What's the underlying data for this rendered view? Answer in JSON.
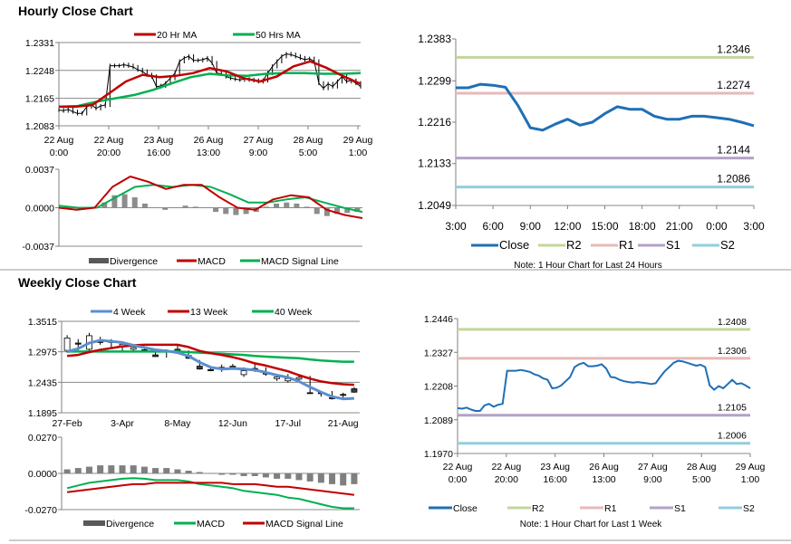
{
  "sections": {
    "hourly_title": "Hourly Close Chart",
    "weekly_title": "Weekly Close Chart"
  },
  "colors": {
    "red": "#c00000",
    "green": "#00b050",
    "blue_ma": "#5b8fd0",
    "close_blue": "#1f6fb5",
    "r2": "#c3d69b",
    "r1": "#e6b9b8",
    "s1": "#b3a2c7",
    "s2": "#93cddd",
    "divergence": "#595959",
    "grid": "#888888"
  },
  "chart_data": [
    {
      "type": "candlestick-line",
      "legend": [
        "20 Hr MA",
        "50 Hrs MA"
      ],
      "ylim": [
        1.2083,
        1.2331
      ],
      "yticks": [
        "1.2331",
        "1.2248",
        "1.2165",
        "1.2083"
      ],
      "xticks": [
        [
          "22 Aug",
          "0:00"
        ],
        [
          "22 Aug",
          "20:00"
        ],
        [
          "23 Aug",
          "16:00"
        ],
        [
          "26 Aug",
          "13:00"
        ],
        [
          "27 Aug",
          "9:00"
        ],
        [
          "28 Aug",
          "5:00"
        ],
        [
          "29 Aug",
          "1:00"
        ]
      ],
      "close": [
        1.213,
        1.2128,
        1.2132,
        1.2125,
        1.212,
        1.212,
        1.214,
        1.2145,
        1.2135,
        1.2142,
        1.2145,
        1.2262,
        1.2262,
        1.2262,
        1.2265,
        1.2262,
        1.2258,
        1.225,
        1.2245,
        1.2235,
        1.223,
        1.22,
        1.2202,
        1.221,
        1.2225,
        1.224,
        1.2275,
        1.2285,
        1.229,
        1.2278,
        1.2278,
        1.228,
        1.2285,
        1.227,
        1.224,
        1.2238,
        1.223,
        1.2225,
        1.2222,
        1.222,
        1.2222,
        1.222,
        1.2218,
        1.2215,
        1.2218,
        1.224,
        1.226,
        1.2275,
        1.229,
        1.2297,
        1.2295,
        1.229,
        1.2285,
        1.228,
        1.2283,
        1.2275,
        1.221,
        1.2195,
        1.2208,
        1.22,
        1.2215,
        1.223,
        1.2215,
        1.2218,
        1.221,
        1.22
      ],
      "series": [
        {
          "name": "20 Hr MA",
          "values": [
            1.214,
            1.214,
            1.2145,
            1.218,
            1.2215,
            1.2235,
            1.2228,
            1.2232,
            1.224,
            1.2255,
            1.2245,
            1.2225,
            1.2215,
            1.223,
            1.226,
            1.2275,
            1.2255,
            1.223,
            1.2208
          ]
        },
        {
          "name": "50 Hrs MA",
          "values": [
            1.214,
            1.2142,
            1.2155,
            1.2165,
            1.2175,
            1.219,
            1.221,
            1.2228,
            1.2238,
            1.2233,
            1.2232,
            1.2238,
            1.224,
            1.224,
            1.2238,
            1.2238,
            1.224
          ]
        }
      ]
    },
    {
      "type": "bar-line",
      "legend": [
        "Divergence",
        "MACD",
        "MACD Signal Line"
      ],
      "ylim": [
        -0.0037,
        0.0037
      ],
      "yticks": [
        "0.0037",
        "0.0000",
        "-0.0037"
      ],
      "divergence": [
        0,
        0,
        0,
        0.0001,
        0.0005,
        0.0012,
        0.0013,
        0.001,
        0.0004,
        0,
        -0.0002,
        0,
        0.0002,
        0.0001,
        0,
        -0.0004,
        -0.0006,
        -0.0007,
        -0.0006,
        -0.0004,
        0.0001,
        0.0004,
        0.0005,
        0.0004,
        0.0001,
        -0.0006,
        -0.0008,
        -0.0006,
        -0.0005,
        -0.0004
      ],
      "series": [
        {
          "name": "MACD",
          "values": [
            0.0,
            -0.0002,
            0.0,
            0.002,
            0.003,
            0.0025,
            0.0018,
            0.0022,
            0.0022,
            0.001,
            0.0,
            -0.0002,
            0.0008,
            0.0012,
            0.001,
            -0.0002,
            -0.0007,
            -0.001
          ]
        },
        {
          "name": "MACD Signal Line",
          "values": [
            0.0002,
            0.0,
            0.0,
            0.001,
            0.002,
            0.0022,
            0.002,
            0.0022,
            0.002,
            0.0013,
            0.0005,
            0.0005,
            0.0008,
            0.001,
            0.0005,
            0.0,
            -0.0004
          ]
        }
      ]
    },
    {
      "type": "candlestick",
      "legend": [
        "4 Week",
        "13 Week",
        "40 Week"
      ],
      "ylim": [
        1.1895,
        1.3515
      ],
      "yticks": [
        "1.3515",
        "1.2975",
        "1.2435",
        "1.1895"
      ],
      "xticks": [
        "27-Feb",
        "3-Apr",
        "8-May",
        "12-Jun",
        "17-Jul",
        "21-Aug"
      ],
      "ohlc": [
        [
          1.3,
          1.327,
          1.296,
          1.322
        ],
        [
          1.313,
          1.32,
          1.3,
          1.311
        ],
        [
          1.302,
          1.331,
          1.299,
          1.326
        ],
        [
          1.316,
          1.324,
          1.31,
          1.314
        ],
        [
          1.317,
          1.32,
          1.302,
          1.314
        ],
        [
          1.308,
          1.312,
          1.298,
          1.311
        ],
        [
          1.302,
          1.31,
          1.296,
          1.305
        ],
        [
          1.301,
          1.303,
          1.298,
          1.3
        ],
        [
          1.292,
          1.3,
          1.29,
          1.289
        ],
        [
          1.3,
          1.302,
          1.287,
          1.299
        ],
        [
          1.302,
          1.31,
          1.295,
          1.299
        ],
        [
          1.291,
          1.3,
          1.285,
          1.286
        ],
        [
          1.272,
          1.283,
          1.266,
          1.267
        ],
        [
          1.266,
          1.268,
          1.263,
          1.264
        ],
        [
          1.27,
          1.275,
          1.262,
          1.269
        ],
        [
          1.272,
          1.276,
          1.267,
          1.268
        ],
        [
          1.257,
          1.27,
          1.253,
          1.264
        ],
        [
          1.268,
          1.277,
          1.262,
          1.267
        ],
        [
          1.26,
          1.27,
          1.255,
          1.258
        ],
        [
          1.25,
          1.256,
          1.246,
          1.253
        ],
        [
          1.246,
          1.258,
          1.243,
          1.25
        ],
        [
          1.249,
          1.256,
          1.245,
          1.252
        ],
        [
          1.225,
          1.255,
          1.225,
          1.224
        ],
        [
          1.225,
          1.228,
          1.218,
          1.224
        ],
        [
          1.216,
          1.228,
          1.213,
          1.215
        ],
        [
          1.222,
          1.225,
          1.216,
          1.221
        ],
        [
          1.232,
          1.235,
          1.225,
          1.226
        ]
      ],
      "series": [
        {
          "name": "4 Week",
          "values": [
            1.298,
            1.303,
            1.313,
            1.318,
            1.316,
            1.314,
            1.309,
            1.305,
            1.301,
            1.299,
            1.296,
            1.29,
            1.279,
            1.27,
            1.267,
            1.268,
            1.267,
            1.265,
            1.261,
            1.256,
            1.252,
            1.245,
            1.235,
            1.226,
            1.218,
            1.214,
            1.215
          ]
        },
        {
          "name": "13 Week",
          "values": [
            1.29,
            1.292,
            1.297,
            1.301,
            1.304,
            1.307,
            1.309,
            1.31,
            1.31,
            1.31,
            1.31,
            1.306,
            1.299,
            1.295,
            1.292,
            1.288,
            1.283,
            1.277,
            1.273,
            1.268,
            1.263,
            1.256,
            1.25,
            1.245,
            1.242,
            1.24,
            1.239
          ]
        },
        {
          "name": "40 Week",
          "values": [
            1.298,
            1.298,
            1.298,
            1.298,
            1.298,
            1.298,
            1.298,
            1.298,
            1.298,
            1.298,
            1.298,
            1.297,
            1.296,
            1.295,
            1.294,
            1.293,
            1.292,
            1.29,
            1.289,
            1.288,
            1.287,
            1.286,
            1.284,
            1.282,
            1.281,
            1.28,
            1.28
          ]
        }
      ]
    },
    {
      "type": "bar-line",
      "legend": [
        "Divergence",
        "MACD",
        "MACD Signal Line"
      ],
      "ylim": [
        -0.027,
        0.027
      ],
      "yticks": [
        "0.0270",
        "0.0000",
        "-0.0270"
      ],
      "divergence": [
        0.003,
        0.004,
        0.005,
        0.006,
        0.006,
        0.006,
        0.006,
        0.005,
        0.004,
        0.004,
        0.003,
        0.002,
        0.001,
        0,
        -0.001,
        -0.001,
        -0.002,
        -0.002,
        -0.003,
        -0.004,
        -0.004,
        -0.005,
        -0.006,
        -0.007,
        -0.008,
        -0.009,
        -0.008
      ],
      "series": [
        {
          "name": "MACD",
          "values": [
            -0.011,
            -0.009,
            -0.007,
            -0.006,
            -0.005,
            -0.004,
            -0.0035,
            -0.004,
            -0.005,
            -0.005,
            -0.005,
            -0.006,
            -0.008,
            -0.009,
            -0.01,
            -0.011,
            -0.013,
            -0.014,
            -0.015,
            -0.016,
            -0.018,
            -0.019,
            -0.021,
            -0.023,
            -0.025,
            -0.026,
            -0.026
          ]
        },
        {
          "name": "MACD Signal Line",
          "values": [
            -0.014,
            -0.013,
            -0.012,
            -0.011,
            -0.01,
            -0.009,
            -0.008,
            -0.008,
            -0.007,
            -0.007,
            -0.007,
            -0.007,
            -0.007,
            -0.007,
            -0.007,
            -0.008,
            -0.008,
            -0.008,
            -0.009,
            -0.01,
            -0.01,
            -0.011,
            -0.012,
            -0.013,
            -0.014,
            -0.015,
            -0.016
          ]
        }
      ]
    },
    {
      "type": "line",
      "legend": [
        "Close",
        "R2",
        "R1",
        "S1",
        "S2"
      ],
      "note": "Note: 1 Hour Chart for Last 24 Hours",
      "ylim": [
        1.2049,
        1.2383
      ],
      "yticks": [
        "1.2383",
        "1.2299",
        "1.2216",
        "1.2133",
        "1.2049"
      ],
      "xticks": [
        "3:00",
        "6:00",
        "9:00",
        "12:00",
        "15:00",
        "18:00",
        "21:00",
        "0:00",
        "3:00"
      ],
      "close": [
        1.2285,
        1.2285,
        1.2292,
        1.229,
        1.2286,
        1.225,
        1.2205,
        1.22,
        1.2212,
        1.2222,
        1.221,
        1.2216,
        1.2233,
        1.2247,
        1.2242,
        1.2242,
        1.2228,
        1.2222,
        1.2222,
        1.2228,
        1.2228,
        1.2225,
        1.2222,
        1.2216,
        1.2209
      ],
      "levels": [
        {
          "name": "R2",
          "value": 1.2346,
          "label": "1.2346"
        },
        {
          "name": "R1",
          "value": 1.2274,
          "label": "1.2274"
        },
        {
          "name": "S1",
          "value": 1.2144,
          "label": "1.2144"
        },
        {
          "name": "S2",
          "value": 1.2086,
          "label": "1.2086"
        }
      ]
    },
    {
      "type": "line",
      "legend": [
        "Close",
        "R2",
        "R1",
        "S1",
        "S2"
      ],
      "note": "Note: 1 Hour Chart for Last 1 Week",
      "ylim": [
        1.197,
        1.2446
      ],
      "yticks": [
        "1.2446",
        "1.2327",
        "1.2208",
        "1.2089",
        "1.1970"
      ],
      "xticks": [
        [
          "22 Aug",
          "0:00"
        ],
        [
          "22 Aug",
          "20:00"
        ],
        [
          "23 Aug",
          "16:00"
        ],
        [
          "26 Aug",
          "13:00"
        ],
        [
          "27 Aug",
          "9:00"
        ],
        [
          "28 Aug",
          "5:00"
        ],
        [
          "29 Aug",
          "1:00"
        ]
      ],
      "close": [
        1.213,
        1.2128,
        1.2132,
        1.2125,
        1.212,
        1.212,
        1.214,
        1.2145,
        1.2135,
        1.2142,
        1.2145,
        1.2262,
        1.2262,
        1.2262,
        1.2265,
        1.2262,
        1.2258,
        1.225,
        1.2245,
        1.2235,
        1.223,
        1.22,
        1.2202,
        1.221,
        1.2225,
        1.224,
        1.2275,
        1.2285,
        1.229,
        1.2278,
        1.2278,
        1.228,
        1.2285,
        1.227,
        1.224,
        1.2238,
        1.223,
        1.2225,
        1.2222,
        1.222,
        1.2222,
        1.222,
        1.2218,
        1.2215,
        1.2218,
        1.224,
        1.226,
        1.2275,
        1.229,
        1.2297,
        1.2295,
        1.229,
        1.2285,
        1.228,
        1.2283,
        1.2275,
        1.221,
        1.2195,
        1.2208,
        1.22,
        1.2215,
        1.223,
        1.2215,
        1.2218,
        1.221,
        1.22
      ],
      "levels": [
        {
          "name": "R2",
          "value": 1.2408,
          "label": "1.2408"
        },
        {
          "name": "R1",
          "value": 1.2306,
          "label": "1.2306"
        },
        {
          "name": "S1",
          "value": 1.2105,
          "label": "1.2105"
        },
        {
          "name": "S2",
          "value": 1.2006,
          "label": "1.2006"
        }
      ]
    }
  ]
}
